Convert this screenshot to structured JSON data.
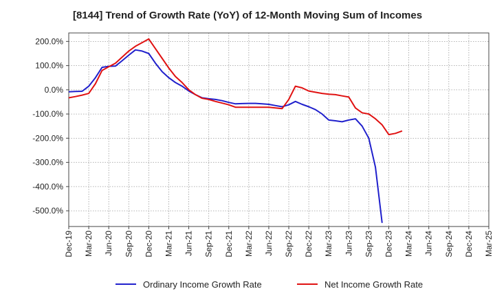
{
  "chart_data": {
    "type": "line",
    "title": "[8144]  Trend of Growth Rate (YoY) of 12-Month Moving Sum of Incomes",
    "xlabel": "",
    "ylabel": "",
    "x_ticks": [
      "Dec-19",
      "Mar-20",
      "Jun-20",
      "Sep-20",
      "Dec-20",
      "Mar-21",
      "Jun-21",
      "Sep-21",
      "Dec-21",
      "Mar-22",
      "Jun-22",
      "Sep-22",
      "Dec-22",
      "Mar-23",
      "Jun-23",
      "Sep-23",
      "Dec-23",
      "Mar-24",
      "Jun-24",
      "Sep-24",
      "Dec-24",
      "Mar-25"
    ],
    "y_ticks": [
      200,
      100,
      0,
      -100,
      -200,
      -300,
      -400,
      -500
    ],
    "y_tick_labels": [
      "200.0%",
      "100.0%",
      "0.0%",
      "-100.0%",
      "-200.0%",
      "-300.0%",
      "-400.0%",
      "-500.0%"
    ],
    "ylim": [
      -565,
      235
    ],
    "grid": true,
    "legend_position": "bottom",
    "series": [
      {
        "name": "Ordinary Income Growth Rate",
        "color": "#1f1fcc",
        "points": [
          [
            0,
            -8
          ],
          [
            1,
            -7
          ],
          [
            2,
            -6
          ],
          [
            3,
            15
          ],
          [
            4,
            50
          ],
          [
            5,
            93
          ],
          [
            6,
            97
          ],
          [
            7,
            98
          ],
          [
            8,
            120
          ],
          [
            9,
            143
          ],
          [
            10,
            165
          ],
          [
            11,
            160
          ],
          [
            12,
            150
          ],
          [
            13,
            110
          ],
          [
            14,
            75
          ],
          [
            15,
            50
          ],
          [
            16,
            30
          ],
          [
            17,
            15
          ],
          [
            18,
            -5
          ],
          [
            19,
            -20
          ],
          [
            20,
            -33
          ],
          [
            21,
            -37
          ],
          [
            22,
            -40
          ],
          [
            23,
            -45
          ],
          [
            24,
            -52
          ],
          [
            25,
            -58
          ],
          [
            26,
            -57
          ],
          [
            27,
            -56
          ],
          [
            28,
            -56
          ],
          [
            29,
            -58
          ],
          [
            30,
            -60
          ],
          [
            31,
            -65
          ],
          [
            32,
            -70
          ],
          [
            33,
            -62
          ],
          [
            34,
            -48
          ],
          [
            35,
            -60
          ],
          [
            36,
            -70
          ],
          [
            37,
            -82
          ],
          [
            38,
            -100
          ],
          [
            39,
            -125
          ],
          [
            40,
            -128
          ],
          [
            41,
            -132
          ],
          [
            42,
            -125
          ],
          [
            43,
            -120
          ],
          [
            44,
            -150
          ],
          [
            45,
            -200
          ],
          [
            46,
            -320
          ],
          [
            47,
            -550
          ]
        ]
      },
      {
        "name": "Net Income Growth Rate",
        "color": "#e01010",
        "points": [
          [
            0,
            -33
          ],
          [
            1,
            -28
          ],
          [
            2,
            -22
          ],
          [
            3,
            -15
          ],
          [
            4,
            25
          ],
          [
            5,
            80
          ],
          [
            6,
            95
          ],
          [
            7,
            110
          ],
          [
            8,
            135
          ],
          [
            9,
            160
          ],
          [
            10,
            180
          ],
          [
            11,
            195
          ],
          [
            12,
            210
          ],
          [
            13,
            170
          ],
          [
            14,
            130
          ],
          [
            15,
            90
          ],
          [
            16,
            55
          ],
          [
            17,
            30
          ],
          [
            18,
            0
          ],
          [
            19,
            -20
          ],
          [
            20,
            -35
          ],
          [
            21,
            -40
          ],
          [
            22,
            -48
          ],
          [
            23,
            -55
          ],
          [
            24,
            -62
          ],
          [
            25,
            -72
          ],
          [
            26,
            -72
          ],
          [
            27,
            -72
          ],
          [
            28,
            -72
          ],
          [
            29,
            -72
          ],
          [
            30,
            -72
          ],
          [
            31,
            -75
          ],
          [
            32,
            -78
          ],
          [
            33,
            -40
          ],
          [
            34,
            15
          ],
          [
            35,
            8
          ],
          [
            36,
            -5
          ],
          [
            37,
            -10
          ],
          [
            38,
            -15
          ],
          [
            39,
            -18
          ],
          [
            40,
            -20
          ],
          [
            41,
            -25
          ],
          [
            42,
            -30
          ],
          [
            43,
            -75
          ],
          [
            44,
            -95
          ],
          [
            45,
            -100
          ],
          [
            46,
            -120
          ],
          [
            47,
            -145
          ],
          [
            48,
            -185
          ],
          [
            49,
            -180
          ],
          [
            50,
            -170
          ]
        ]
      }
    ]
  }
}
